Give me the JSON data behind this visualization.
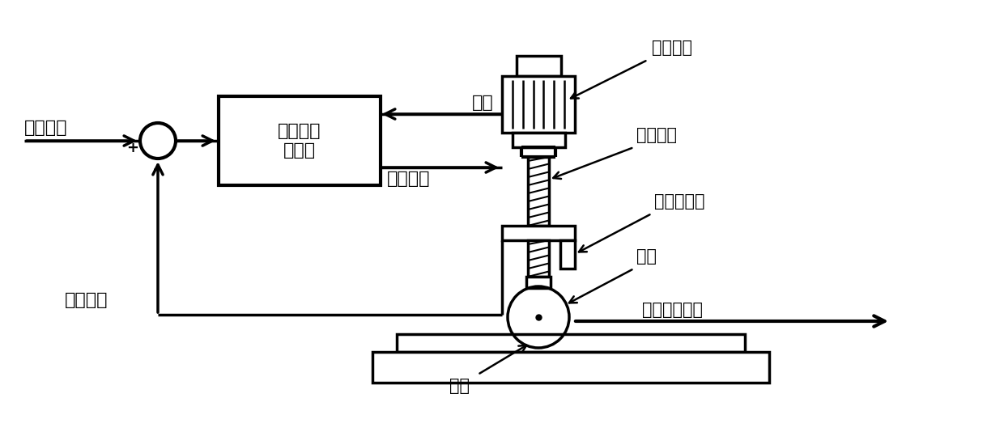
{
  "bg_color": "#ffffff",
  "lw": 2.5,
  "texts": {
    "pressure_cmd": "压力指令",
    "servo_driver": "伺服压力\n驱动器",
    "feedback": "反馈压力",
    "position": "位置",
    "control_voltage": "控制电压",
    "servo_motor": "伺服电机",
    "lead_screw": "丝杆模组",
    "pressure_sensor": "压力传感器",
    "roller": "滚轮",
    "roller_direction": "滚轮滚压方向",
    "workpiece": "工件",
    "plus": "+",
    "minus": "-"
  },
  "font_size": 16,
  "label_font_size": 15
}
